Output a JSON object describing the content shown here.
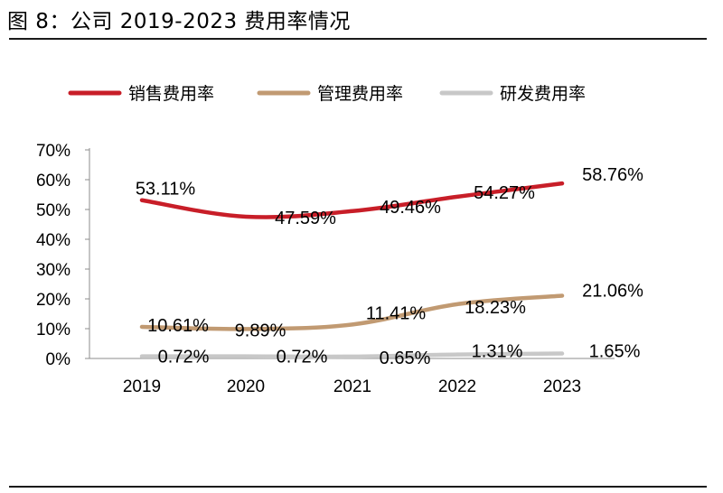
{
  "header": {
    "title": "图 8：公司 2019-2023 费用率情况"
  },
  "chart_data": {
    "type": "line",
    "title": "图 8：公司 2019-2023 费用率情况",
    "xlabel": "",
    "ylabel": "",
    "categories": [
      "2019",
      "2020",
      "2021",
      "2022",
      "2023"
    ],
    "y_ticks": [
      "0%",
      "10%",
      "20%",
      "30%",
      "40%",
      "50%",
      "60%",
      "70%"
    ],
    "ylim": [
      0,
      70
    ],
    "grid": false,
    "legend_position": "top",
    "series": [
      {
        "name": "销售费用率",
        "color": "#c81e28",
        "values": [
          53.11,
          47.59,
          49.46,
          54.27,
          58.76
        ],
        "labels": [
          "53.11%",
          "47.59%",
          "49.46%",
          "54.27%",
          "58.76%"
        ]
      },
      {
        "name": "管理费用率",
        "color": "#c19a72",
        "values": [
          10.61,
          9.89,
          11.41,
          18.23,
          21.06
        ],
        "labels": [
          "10.61%",
          "9.89%",
          "11.41%",
          "18.23%",
          "21.06%"
        ]
      },
      {
        "name": "研发费用率",
        "color": "#c8c8c8",
        "values": [
          0.72,
          0.72,
          0.65,
          1.31,
          1.65
        ],
        "labels": [
          "0.72%",
          "0.72%",
          "0.65%",
          "1.31%",
          "1.65%"
        ]
      }
    ]
  }
}
